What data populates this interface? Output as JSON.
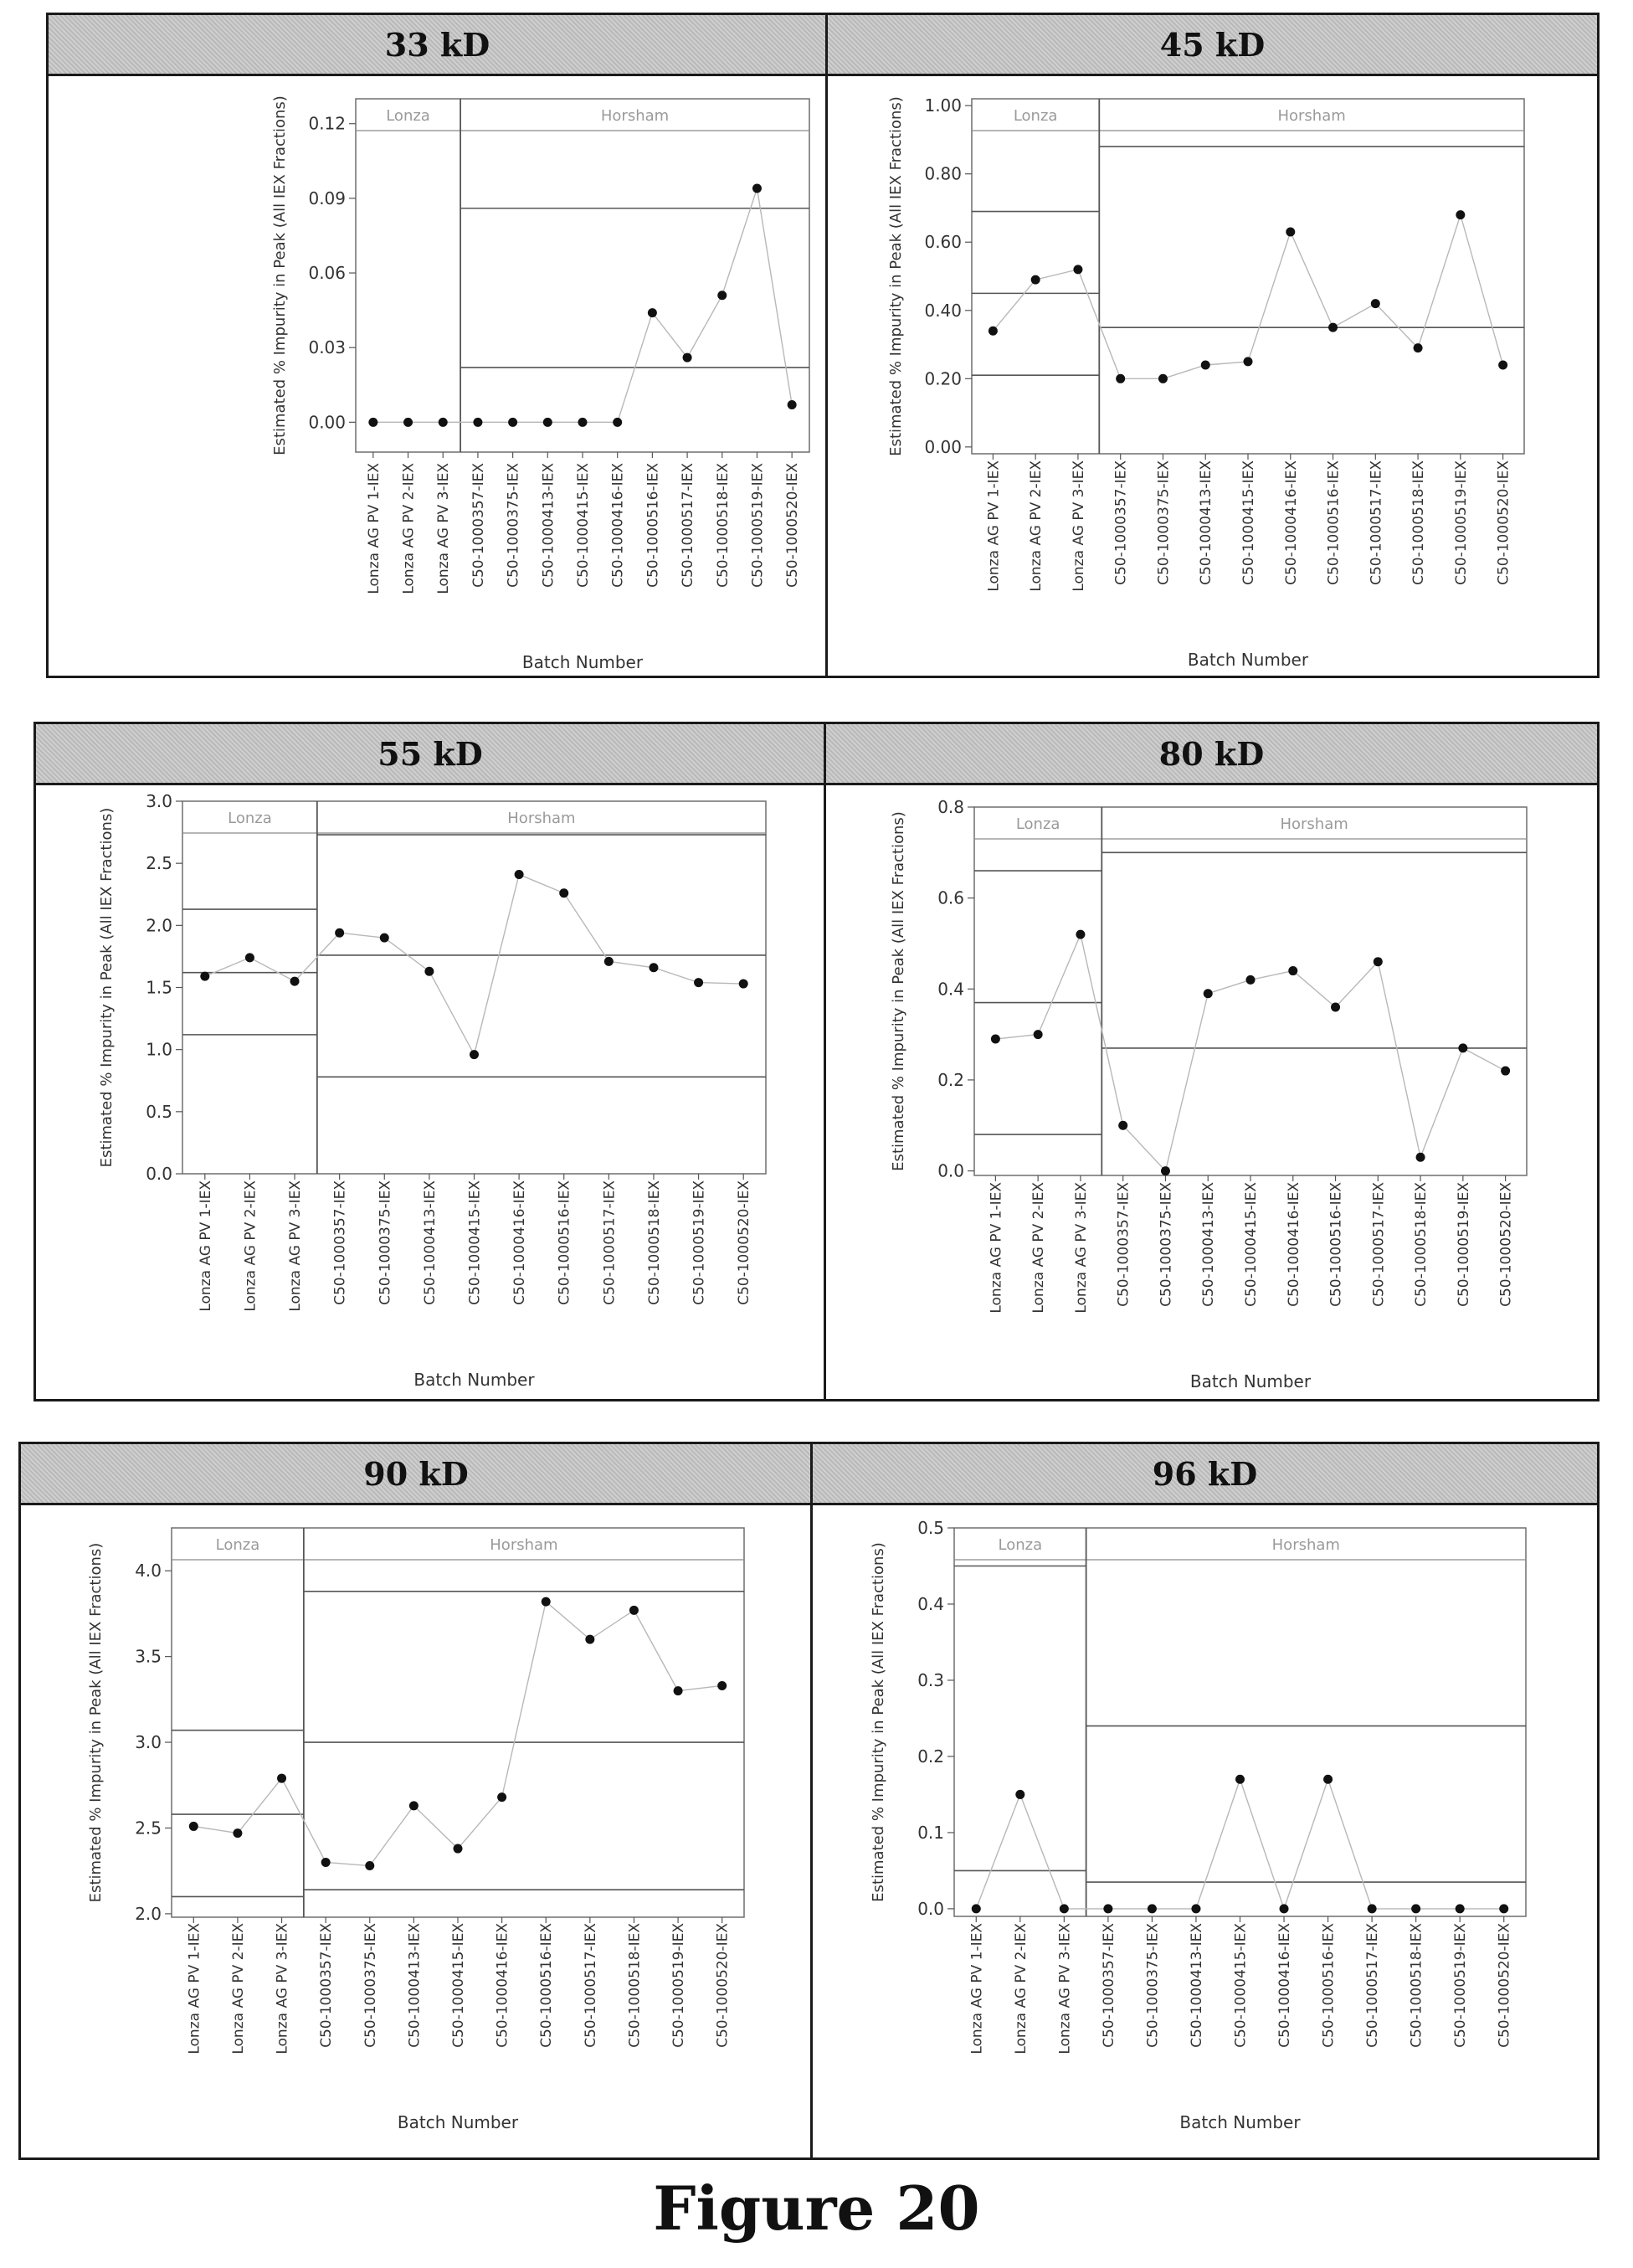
{
  "figure": {
    "caption": "Figure 20"
  },
  "chart_data": [
    {
      "type": "line",
      "title": "33 kD",
      "xlabel": "Batch Number",
      "ylabel": "Estimated % Impurity in Peak (All IEX Fractions)",
      "ylim": [
        -0.012,
        0.13
      ],
      "yticks": [
        "0.00",
        "0.03",
        "0.06",
        "0.09",
        "0.12"
      ],
      "categories": [
        "Lonza AG PV 1-IEX",
        "Lonza AG PV 2-IEX",
        "Lonza AG PV 3-IEX",
        "C50-1000357-IEX",
        "C50-1000375-IEX",
        "C50-1000413-IEX",
        "C50-1000415-IEX",
        "C50-1000416-IEX",
        "C50-1000516-IEX",
        "C50-1000517-IEX",
        "C50-1000518-IEX",
        "C50-1000519-IEX",
        "C50-1000520-IEX"
      ],
      "groups": [
        {
          "name": "Lonza",
          "count": 3
        },
        {
          "name": "Horsham",
          "count": 10
        }
      ],
      "values": [
        0.0,
        0.0,
        0.0,
        0.0,
        0.0,
        0.0,
        0.0,
        0.0,
        0.044,
        0.026,
        0.051,
        0.094,
        0.007
      ],
      "limits": [
        [],
        [
          0.086,
          0.022
        ]
      ]
    },
    {
      "type": "line",
      "title": "45 kD",
      "xlabel": "Batch Number",
      "ylabel": "Estimated % Impurity in Peak (All IEX Fractions)",
      "ylim": [
        -0.02,
        1.02
      ],
      "yticks": [
        "0.00",
        "0.20",
        "0.40",
        "0.60",
        "0.80",
        "1.00"
      ],
      "categories": [
        "Lonza AG PV 1-IEX",
        "Lonza AG PV 2-IEX",
        "Lonza AG PV 3-IEX",
        "C50-1000357-IEX",
        "C50-1000375-IEX",
        "C50-1000413-IEX",
        "C50-1000415-IEX",
        "C50-1000416-IEX",
        "C50-1000516-IEX",
        "C50-1000517-IEX",
        "C50-1000518-IEX",
        "C50-1000519-IEX",
        "C50-1000520-IEX"
      ],
      "groups": [
        {
          "name": "Lonza",
          "count": 3
        },
        {
          "name": "Horsham",
          "count": 10
        }
      ],
      "values": [
        0.34,
        0.49,
        0.52,
        0.2,
        0.2,
        0.24,
        0.25,
        0.63,
        0.35,
        0.42,
        0.29,
        0.68,
        0.24
      ],
      "limits": [
        [
          0.69,
          0.45,
          0.21
        ],
        [
          0.88,
          0.35
        ]
      ]
    },
    {
      "type": "line",
      "title": "55 kD",
      "xlabel": "Batch Number",
      "ylabel": "Estimated % Impurity in Peak (All IEX Fractions)",
      "ylim": [
        0.0,
        3.0
      ],
      "yticks": [
        "0.0",
        "0.5",
        "1.0",
        "1.5",
        "2.0",
        "2.5",
        "3.0"
      ],
      "categories": [
        "Lonza AG PV 1-IEX",
        "Lonza AG PV 2-IEX",
        "Lonza AG PV 3-IEX",
        "C50-1000357-IEX",
        "C50-1000375-IEX",
        "C50-1000413-IEX",
        "C50-1000415-IEX",
        "C50-1000416-IEX",
        "C50-1000516-IEX",
        "C50-1000517-IEX",
        "C50-1000518-IEX",
        "C50-1000519-IEX",
        "C50-1000520-IEX"
      ],
      "groups": [
        {
          "name": "Lonza",
          "count": 3
        },
        {
          "name": "Horsham",
          "count": 10
        }
      ],
      "values": [
        1.59,
        1.74,
        1.55,
        1.94,
        1.9,
        1.63,
        0.96,
        2.41,
        2.26,
        1.71,
        1.66,
        1.54,
        1.53
      ],
      "limits": [
        [
          2.13,
          1.62,
          1.12
        ],
        [
          2.73,
          1.76,
          0.78
        ]
      ]
    },
    {
      "type": "line",
      "title": "80 kD",
      "xlabel": "Batch Number",
      "ylabel": "Estimated % Impurity in Peak (All IEX Fractions)",
      "ylim": [
        -0.01,
        0.8
      ],
      "yticks": [
        "0.0",
        "0.2",
        "0.4",
        "0.6",
        "0.8"
      ],
      "categories": [
        "Lonza AG PV 1-IEX",
        "Lonza AG PV 2-IEX",
        "Lonza AG PV 3-IEX",
        "C50-1000357-IEX",
        "C50-1000375-IEX",
        "C50-1000413-IEX",
        "C50-1000415-IEX",
        "C50-1000416-IEX",
        "C50-1000516-IEX",
        "C50-1000517-IEX",
        "C50-1000518-IEX",
        "C50-1000519-IEX",
        "C50-1000520-IEX"
      ],
      "groups": [
        {
          "name": "Lonza",
          "count": 3
        },
        {
          "name": "Horsham",
          "count": 10
        }
      ],
      "values": [
        0.29,
        0.3,
        0.52,
        0.1,
        0.0,
        0.39,
        0.42,
        0.44,
        0.36,
        0.46,
        0.03,
        0.27,
        0.22
      ],
      "limits": [
        [
          0.66,
          0.37,
          0.08
        ],
        [
          0.7,
          0.27
        ]
      ]
    },
    {
      "type": "line",
      "title": "90 kD",
      "xlabel": "Batch Number",
      "ylabel": "Estimated % Impurity in Peak (All IEX Fractions)",
      "ylim": [
        1.98,
        4.25
      ],
      "yticks": [
        "2.0",
        "2.5",
        "3.0",
        "3.5",
        "4.0"
      ],
      "categories": [
        "Lonza AG PV 1-IEX",
        "Lonza AG PV 2-IEX",
        "Lonza AG PV 3-IEX",
        "C50-1000357-IEX",
        "C50-1000375-IEX",
        "C50-1000413-IEX",
        "C50-1000415-IEX",
        "C50-1000416-IEX",
        "C50-1000516-IEX",
        "C50-1000517-IEX",
        "C50-1000518-IEX",
        "C50-1000519-IEX",
        "C50-1000520-IEX"
      ],
      "groups": [
        {
          "name": "Lonza",
          "count": 3
        },
        {
          "name": "Horsham",
          "count": 10
        }
      ],
      "values": [
        2.51,
        2.47,
        2.79,
        2.3,
        2.28,
        2.63,
        2.38,
        2.68,
        3.82,
        3.6,
        3.77,
        3.3,
        3.33
      ],
      "limits": [
        [
          3.07,
          2.58,
          2.1
        ],
        [
          3.88,
          3.0,
          2.14
        ]
      ]
    },
    {
      "type": "line",
      "title": "96 kD",
      "xlabel": "Batch Number",
      "ylabel": "Estimated % Impurity in Peak (All IEX Fractions)",
      "ylim": [
        -0.01,
        0.5
      ],
      "yticks": [
        "0.0",
        "0.1",
        "0.2",
        "0.3",
        "0.4",
        "0.5"
      ],
      "categories": [
        "Lonza AG PV 1-IEX",
        "Lonza AG PV 2-IEX",
        "Lonza AG PV 3-IEX",
        "C50-1000357-IEX",
        "C50-1000375-IEX",
        "C50-1000413-IEX",
        "C50-1000415-IEX",
        "C50-1000416-IEX",
        "C50-1000516-IEX",
        "C50-1000517-IEX",
        "C50-1000518-IEX",
        "C50-1000519-IEX",
        "C50-1000520-IEX"
      ],
      "groups": [
        {
          "name": "Lonza",
          "count": 3
        },
        {
          "name": "Horsham",
          "count": 10
        }
      ],
      "values": [
        0.0,
        0.15,
        0.0,
        0.0,
        0.0,
        0.0,
        0.17,
        0.0,
        0.17,
        0.0,
        0.0,
        0.0,
        0.0
      ],
      "limits": [
        [
          0.45,
          0.05
        ],
        [
          0.24,
          0.035
        ]
      ]
    }
  ]
}
